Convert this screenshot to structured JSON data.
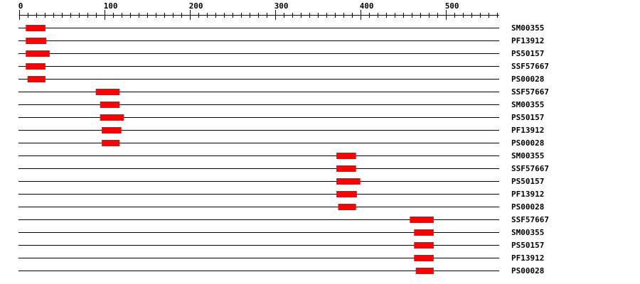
{
  "axis": {
    "min": 0,
    "max": 560,
    "major_step": 100,
    "minor_step": 10,
    "tick_labels": [
      "0",
      "100",
      "200",
      "300",
      "400",
      "500"
    ]
  },
  "colors": {
    "domain": "#ff0000",
    "line": "#000000"
  },
  "tracks": [
    {
      "label": "SM00355",
      "start": 8,
      "end": 31
    },
    {
      "label": "PF13912",
      "start": 8,
      "end": 32
    },
    {
      "label": "PS50157",
      "start": 8,
      "end": 36
    },
    {
      "label": "SSF57667",
      "start": 8,
      "end": 31
    },
    {
      "label": "PS00028",
      "start": 10,
      "end": 31
    },
    {
      "label": "SSF57667",
      "start": 90,
      "end": 118
    },
    {
      "label": "SM00355",
      "start": 95,
      "end": 118
    },
    {
      "label": "PS50157",
      "start": 95,
      "end": 123
    },
    {
      "label": "PF13912",
      "start": 97,
      "end": 120
    },
    {
      "label": "PS00028",
      "start": 97,
      "end": 118
    },
    {
      "label": "SM00355",
      "start": 372,
      "end": 395
    },
    {
      "label": "SSF57667",
      "start": 372,
      "end": 395
    },
    {
      "label": "PS50157",
      "start": 372,
      "end": 400
    },
    {
      "label": "PF13912",
      "start": 372,
      "end": 396
    },
    {
      "label": "PS00028",
      "start": 374,
      "end": 395
    },
    {
      "label": "SSF57667",
      "start": 458,
      "end": 486
    },
    {
      "label": "SM00355",
      "start": 463,
      "end": 486
    },
    {
      "label": "PS50157",
      "start": 463,
      "end": 486
    },
    {
      "label": "PF13912",
      "start": 463,
      "end": 486
    },
    {
      "label": "PS00028",
      "start": 465,
      "end": 486
    }
  ]
}
